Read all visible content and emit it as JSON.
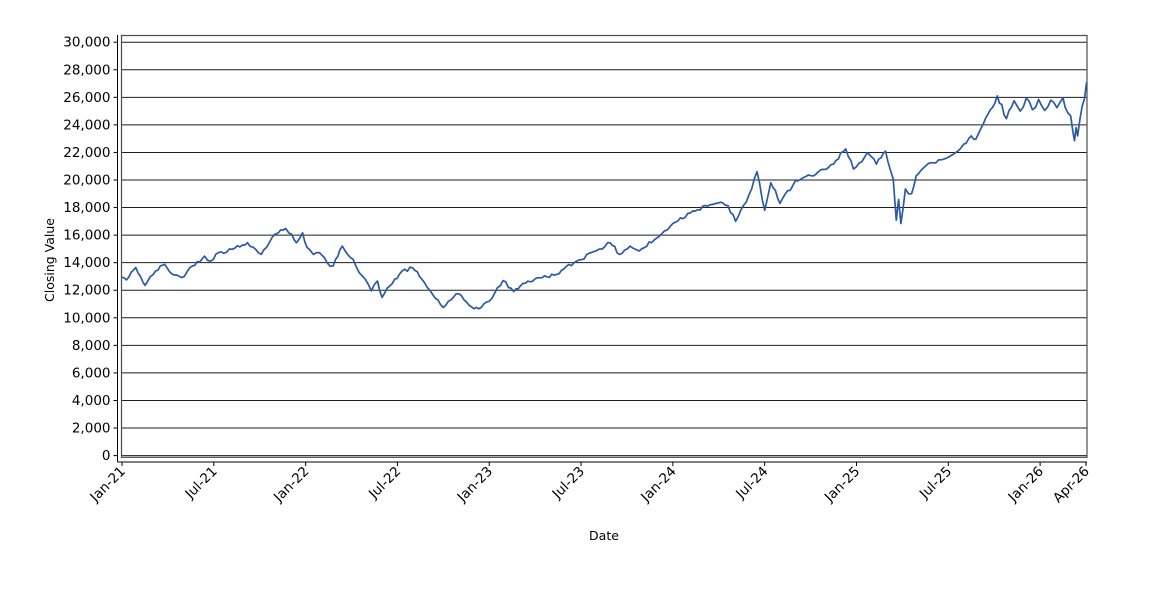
{
  "chart_data": {
    "type": "line",
    "title": "",
    "xlabel": "Date",
    "ylabel": "Closing Value",
    "ylim": [
      0,
      30000
    ],
    "y_tick_interval": 2000,
    "grid": "horizontal",
    "legend": "none",
    "axis_color": "#000000",
    "frame_color": "#4d4d4d",
    "gridline_color": "#1f1f1f",
    "y_ticks": [
      {
        "v": 0,
        "label": "0"
      },
      {
        "v": 2000,
        "label": "2,000"
      },
      {
        "v": 4000,
        "label": "4,000"
      },
      {
        "v": 6000,
        "label": "6,000"
      },
      {
        "v": 8000,
        "label": "8,000"
      },
      {
        "v": 10000,
        "label": "10,000"
      },
      {
        "v": 12000,
        "label": "12,000"
      },
      {
        "v": 14000,
        "label": "14,000"
      },
      {
        "v": 16000,
        "label": "16,000"
      },
      {
        "v": 18000,
        "label": "18,000"
      },
      {
        "v": 20000,
        "label": "20,000"
      },
      {
        "v": 22000,
        "label": "22,000"
      },
      {
        "v": 24000,
        "label": "24,000"
      },
      {
        "v": 26000,
        "label": "26,000"
      },
      {
        "v": 28000,
        "label": "28,000"
      },
      {
        "v": 30000,
        "label": "30,000"
      }
    ],
    "x_ticks": [
      {
        "m": 0,
        "label": "Jan-21"
      },
      {
        "m": 6,
        "label": "Jul-21"
      },
      {
        "m": 12,
        "label": "Jan-22"
      },
      {
        "m": 18,
        "label": "Jul-22"
      },
      {
        "m": 24,
        "label": "Jan-23"
      },
      {
        "m": 30,
        "label": "Jul-23"
      },
      {
        "m": 36,
        "label": "Jan-24"
      },
      {
        "m": 42,
        "label": "Jul-24"
      },
      {
        "m": 48,
        "label": "Jan-25"
      },
      {
        "m": 54,
        "label": "Jul-25"
      },
      {
        "m": 60,
        "label": "Jan-26"
      },
      {
        "m": 63,
        "label": "Apr-26"
      }
    ],
    "x_range_months": [
      0,
      63
    ],
    "series": [
      {
        "name": "Closing Value",
        "color": "#2b5aa5",
        "x_unit": "months_since_Jan-21",
        "points": [
          [
            0,
            12950
          ],
          [
            0.3,
            12750
          ],
          [
            0.9,
            13650
          ],
          [
            1.5,
            12350
          ],
          [
            2.2,
            13400
          ],
          [
            2.8,
            13880
          ],
          [
            3.3,
            13160
          ],
          [
            3.9,
            12920
          ],
          [
            4.6,
            13760
          ],
          [
            5.4,
            14480
          ],
          [
            5.8,
            14120
          ],
          [
            6.3,
            14730
          ],
          [
            7.2,
            14970
          ],
          [
            8.2,
            15450
          ],
          [
            9.1,
            14600
          ],
          [
            9.8,
            15820
          ],
          [
            10.2,
            16150
          ],
          [
            10.7,
            16480
          ],
          [
            11.1,
            16050
          ],
          [
            11.4,
            15450
          ],
          [
            11.8,
            16170
          ],
          [
            12.1,
            15100
          ],
          [
            12.5,
            14600
          ],
          [
            12.9,
            14730
          ],
          [
            13.4,
            14000
          ],
          [
            13.8,
            13760
          ],
          [
            14.4,
            15200
          ],
          [
            15.1,
            14250
          ],
          [
            15.5,
            13280
          ],
          [
            15.9,
            12800
          ],
          [
            16.3,
            11950
          ],
          [
            16.7,
            12670
          ],
          [
            17.0,
            11470
          ],
          [
            17.5,
            12310
          ],
          [
            18.3,
            13390
          ],
          [
            19.0,
            13620
          ],
          [
            19.6,
            12800
          ],
          [
            20.3,
            11700
          ],
          [
            21.0,
            10750
          ],
          [
            21.5,
            11300
          ],
          [
            22.0,
            11750
          ],
          [
            22.7,
            10900
          ],
          [
            23.3,
            10650
          ],
          [
            24.0,
            11200
          ],
          [
            24.9,
            12700
          ],
          [
            25.6,
            11900
          ],
          [
            26.2,
            12500
          ],
          [
            27.3,
            12900
          ],
          [
            28.4,
            13150
          ],
          [
            29.7,
            14100
          ],
          [
            30.7,
            14750
          ],
          [
            31.9,
            15450
          ],
          [
            32.5,
            14600
          ],
          [
            33.2,
            15200
          ],
          [
            33.8,
            14850
          ],
          [
            35.1,
            15900
          ],
          [
            36.0,
            16850
          ],
          [
            37.3,
            17750
          ],
          [
            38.1,
            18150
          ],
          [
            38.8,
            18300
          ],
          [
            39.6,
            18150
          ],
          [
            40.1,
            17000
          ],
          [
            40.8,
            18400
          ],
          [
            41.5,
            20600
          ],
          [
            42.0,
            17800
          ],
          [
            42.4,
            19800
          ],
          [
            43.0,
            18300
          ],
          [
            44.0,
            19950
          ],
          [
            45.2,
            20300
          ],
          [
            46.5,
            21150
          ],
          [
            47.3,
            22250
          ],
          [
            47.8,
            20800
          ],
          [
            48.7,
            21980
          ],
          [
            49.3,
            21150
          ],
          [
            49.9,
            22100
          ],
          [
            50.4,
            20070
          ],
          [
            50.6,
            17080
          ],
          [
            50.75,
            18600
          ],
          [
            50.9,
            16840
          ],
          [
            51.2,
            19350
          ],
          [
            51.6,
            19000
          ],
          [
            51.9,
            20300
          ],
          [
            52.4,
            20900
          ],
          [
            53.0,
            21250
          ],
          [
            53.9,
            21600
          ],
          [
            54.5,
            22000
          ],
          [
            55.0,
            22600
          ],
          [
            55.5,
            23200
          ],
          [
            55.8,
            22950
          ],
          [
            56.3,
            24100
          ],
          [
            56.6,
            24800
          ],
          [
            57.2,
            26100
          ],
          [
            57.8,
            24450
          ],
          [
            58.3,
            25750
          ],
          [
            58.7,
            25000
          ],
          [
            59.1,
            25950
          ],
          [
            59.5,
            25100
          ],
          [
            59.9,
            25850
          ],
          [
            60.3,
            25050
          ],
          [
            60.7,
            25800
          ],
          [
            61.1,
            25250
          ],
          [
            61.5,
            25950
          ],
          [
            61.8,
            24900
          ],
          [
            62.0,
            24650
          ],
          [
            62.15,
            23450
          ],
          [
            62.25,
            22850
          ],
          [
            62.35,
            23800
          ],
          [
            62.45,
            23200
          ],
          [
            62.6,
            24400
          ],
          [
            62.9,
            25900
          ],
          [
            63.1,
            27050
          ]
        ]
      }
    ]
  }
}
